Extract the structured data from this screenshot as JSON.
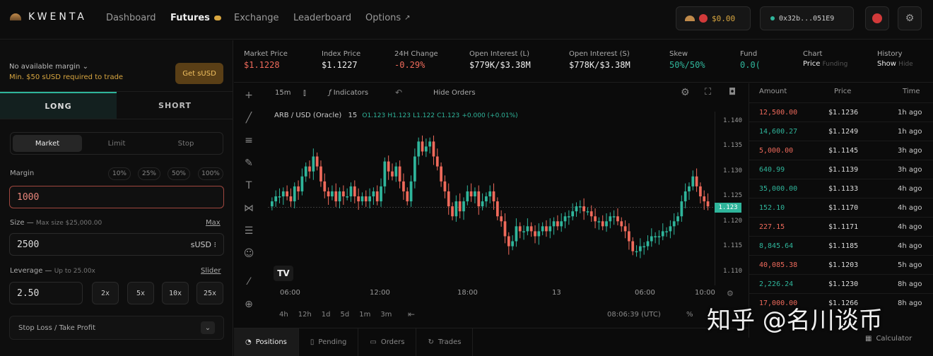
{
  "app": {
    "name": "KWENTA"
  },
  "nav": [
    {
      "label": "Dashboard"
    },
    {
      "label": "Futures"
    },
    {
      "label": "Exchange"
    },
    {
      "label": "Leaderboard"
    },
    {
      "label": "Options"
    }
  ],
  "wallet": {
    "balance": "$0.00",
    "address": "0x32b...051E9"
  },
  "margin": {
    "warning": "No available margin",
    "requirement": "Min. $50 sUSD required to trade",
    "get_button": "Get sUSD"
  },
  "position_tabs": {
    "long": "LONG",
    "short": "SHORT"
  },
  "order_types": [
    "Market",
    "Limit",
    "Stop"
  ],
  "margin_input": {
    "label": "Margin",
    "value": "1000",
    "percents": [
      "10%",
      "25%",
      "50%",
      "100%"
    ]
  },
  "size": {
    "label": "Size",
    "max_note": "Max size $25,000.00",
    "max_link": "Max",
    "value": "2500",
    "unit": "sUSD"
  },
  "leverage": {
    "label": "Leverage",
    "note": "Up to 25.00x",
    "slider_link": "Slider",
    "value": "2.50",
    "options": [
      "2x",
      "5x",
      "10x",
      "25x"
    ]
  },
  "stop_loss": {
    "label": "Stop Loss / Take Profit"
  },
  "market_stats": {
    "market_price": {
      "label": "Market Price",
      "value": "$1.1228"
    },
    "index_price": {
      "label": "Index Price",
      "value": "$1.1227"
    },
    "change": {
      "label": "24H Change",
      "value": "-0.29%"
    },
    "oi_long": {
      "label": "Open Interest (L)",
      "value": "$779K/$3.38M"
    },
    "oi_short": {
      "label": "Open Interest (S)",
      "value": "$778K/$3.38M"
    },
    "skew": {
      "label": "Skew",
      "value": "50%/50%"
    },
    "funding": {
      "label": "Fund",
      "value": "0.0("
    },
    "chart": {
      "label": "Chart",
      "opt1": "Price",
      "opt2": "Funding"
    },
    "history": {
      "label": "History",
      "opt1": "Show",
      "opt2": "Hide"
    }
  },
  "chart_toolbar": {
    "interval": "15m",
    "indicators": "Indicators",
    "hide_orders": "Hide Orders"
  },
  "chart_legend": {
    "symbol": "ARB / USD (Oracle)",
    "tf": "15",
    "o": "O1.123",
    "h": "H1.123",
    "l": "L1.122",
    "c": "C1.123",
    "chg": "+0.000 (+0.01%)"
  },
  "chart_bottom": {
    "ranges": [
      "4h",
      "12h",
      "1d",
      "5d",
      "1m",
      "3m"
    ],
    "time": "08:06:39 (UTC)",
    "pct": "%"
  },
  "chart_data": {
    "type": "candlestick",
    "y_ticks": [
      "1.140",
      "1.135",
      "1.130",
      "1.125",
      "1.120",
      "1.115",
      "1.110"
    ],
    "ylim": [
      1.108,
      1.142
    ],
    "x_ticks": [
      "06:00",
      "12:00",
      "18:00",
      "13",
      "06:00",
      "10:00"
    ],
    "last_price_label": "1.123",
    "last_price": 1.1228,
    "closes": [
      1.124,
      1.125,
      1.125,
      1.126,
      1.125,
      1.124,
      1.127,
      1.126,
      1.129,
      1.131,
      1.13,
      1.133,
      1.131,
      1.128,
      1.126,
      1.125,
      1.126,
      1.124,
      1.126,
      1.125,
      1.125,
      1.127,
      1.125,
      1.124,
      1.125,
      1.124,
      1.125,
      1.126,
      1.124,
      1.127,
      1.132,
      1.13,
      1.129,
      1.131,
      1.128,
      1.126,
      1.124,
      1.128,
      1.133,
      1.136,
      1.134,
      1.135,
      1.136,
      1.133,
      1.131,
      1.128,
      1.126,
      1.123,
      1.121,
      1.124,
      1.122,
      1.124,
      1.126,
      1.125,
      1.126,
      1.123,
      1.124,
      1.125,
      1.126,
      1.124,
      1.121,
      1.12,
      1.117,
      1.115,
      1.116,
      1.119,
      1.118,
      1.118,
      1.119,
      1.118,
      1.117,
      1.118,
      1.119,
      1.118,
      1.119,
      1.12,
      1.119,
      1.12,
      1.121,
      1.121,
      1.122,
      1.123,
      1.123,
      1.122,
      1.122,
      1.121,
      1.12,
      1.12,
      1.119,
      1.12,
      1.121,
      1.121,
      1.12,
      1.119,
      1.118,
      1.116,
      1.114,
      1.114,
      1.115,
      1.115,
      1.116,
      1.117,
      1.117,
      1.117,
      1.118,
      1.118,
      1.119,
      1.12,
      1.121,
      1.124,
      1.126,
      1.127,
      1.129,
      1.127,
      1.125,
      1.124,
      1.123
    ]
  },
  "trades": {
    "headers": [
      "Amount",
      "Price",
      "Time"
    ],
    "rows": [
      {
        "amount": "12,500.00",
        "price": "$1.1236",
        "time": "1h ago",
        "side": "sell"
      },
      {
        "amount": "14,600.27",
        "price": "$1.1249",
        "time": "1h ago",
        "side": "buy"
      },
      {
        "amount": "5,000.00",
        "price": "$1.1145",
        "time": "3h ago",
        "side": "sell"
      },
      {
        "amount": "640.99",
        "price": "$1.1139",
        "time": "3h ago",
        "side": "buy"
      },
      {
        "amount": "35,000.00",
        "price": "$1.1133",
        "time": "4h ago",
        "side": "buy"
      },
      {
        "amount": "152.10",
        "price": "$1.1170",
        "time": "4h ago",
        "side": "buy"
      },
      {
        "amount": "227.15",
        "price": "$1.1171",
        "time": "4h ago",
        "side": "sell"
      },
      {
        "amount": "8,845.64",
        "price": "$1.1185",
        "time": "4h ago",
        "side": "buy"
      },
      {
        "amount": "40,085.38",
        "price": "$1.1203",
        "time": "5h ago",
        "side": "sell"
      },
      {
        "amount": "2,226.24",
        "price": "$1.1230",
        "time": "8h ago",
        "side": "buy"
      },
      {
        "amount": "17,000.00",
        "price": "$1.1266",
        "time": "8h ago",
        "side": "sell"
      }
    ]
  },
  "bottom_tabs": [
    "Positions",
    "Pending",
    "Orders",
    "Trades"
  ],
  "calculator": "Calculator",
  "watermark": "知乎 @名川谈币",
  "colors": {
    "green": "#2fb59b",
    "red": "#ef6a5b",
    "gold": "#d8a640"
  }
}
